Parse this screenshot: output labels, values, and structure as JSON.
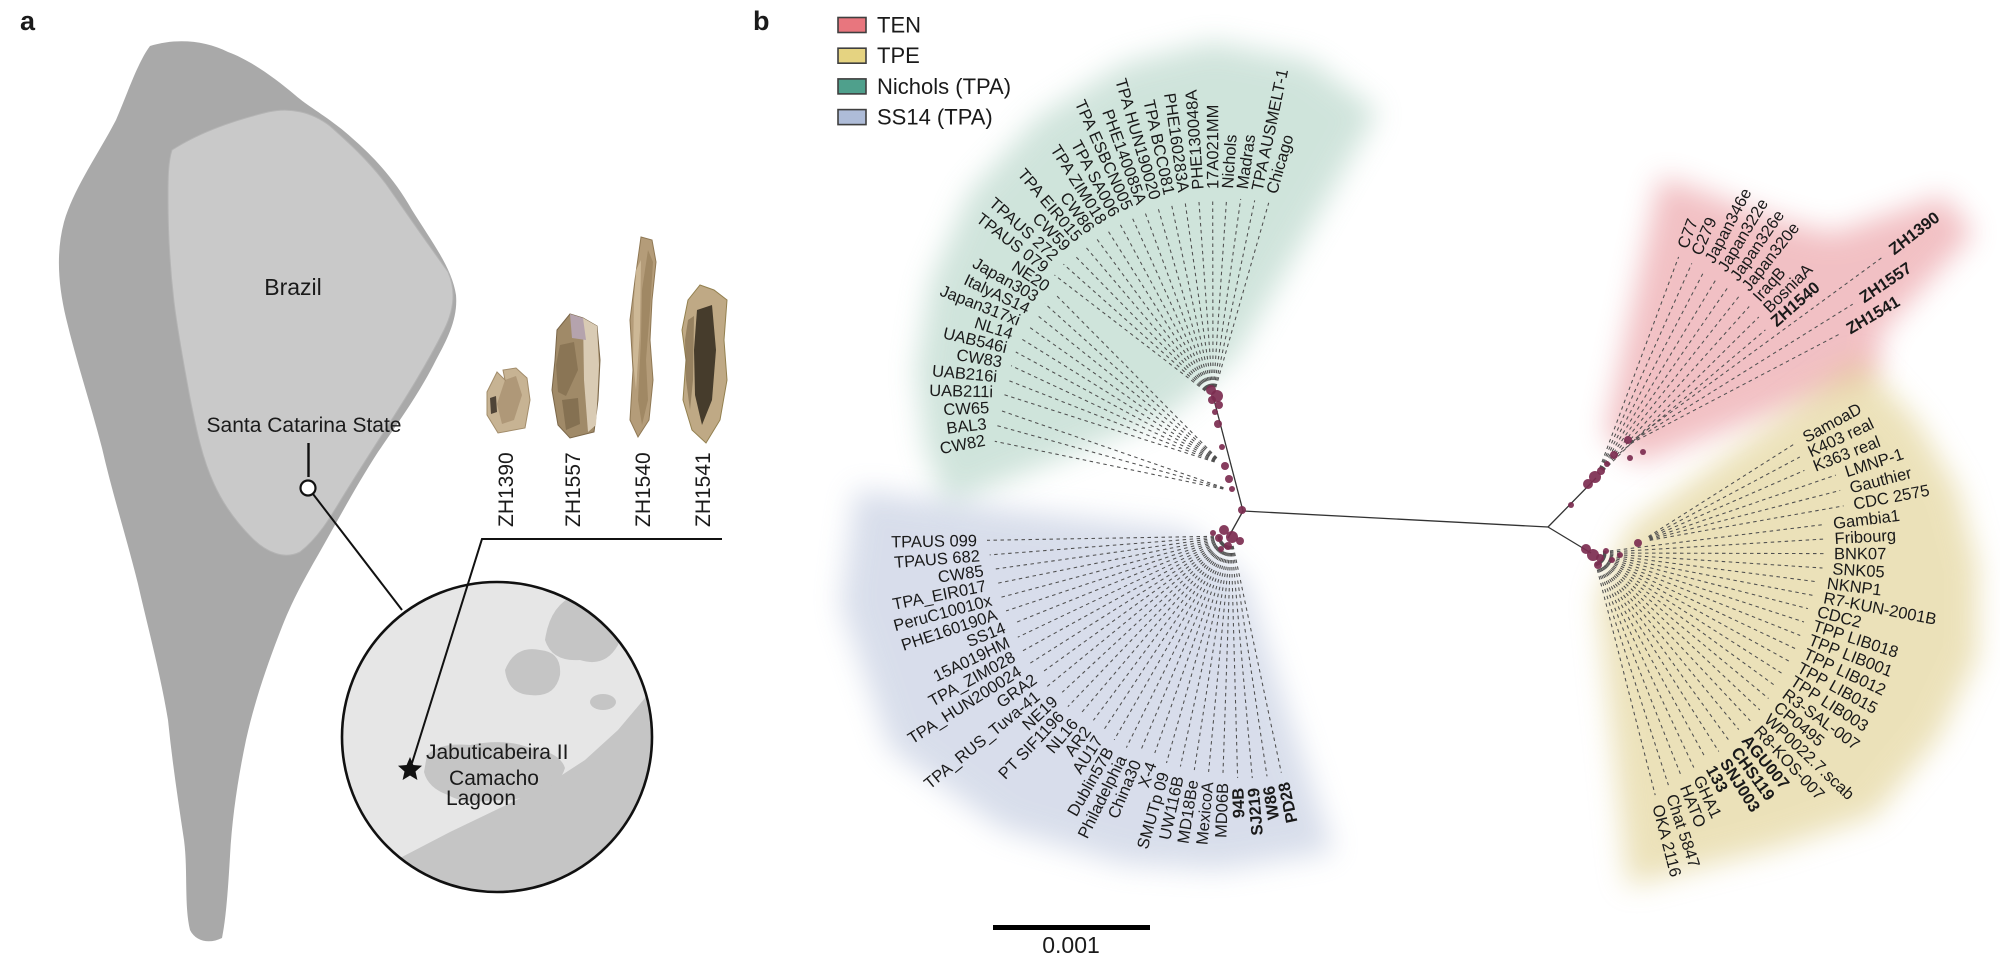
{
  "figure": {
    "panel_a_letter": "a",
    "panel_b_letter": "b"
  },
  "panel_a": {
    "map": {
      "country_label": "Brazil",
      "state_label": "Santa Catarina State"
    },
    "inset": {
      "site_label": "Jabuticabeira II",
      "lagoon_label_line1": "Camacho",
      "lagoon_label_line2": "Lagoon"
    },
    "samples": [
      {
        "id": "ZH1390"
      },
      {
        "id": "ZH1557"
      },
      {
        "id": "ZH1540"
      },
      {
        "id": "ZH1541"
      }
    ]
  },
  "panel_b": {
    "legend": {
      "items": [
        {
          "label": "TEN",
          "color": "#e8767e"
        },
        {
          "label": "TPE",
          "color": "#e5d381"
        },
        {
          "label": "Nichols (TPA)",
          "color": "#4fa08c"
        },
        {
          "label": "SS14 (TPA)",
          "color": "#aebcd8"
        }
      ]
    },
    "scale_bar": {
      "label": "0.001"
    },
    "chart_data": {
      "type": "phylogenetic_tree",
      "layout": "unrooted-radial",
      "scale_bar_value": "0.001",
      "node_color": "#7c2d50",
      "stem_color": "#333333",
      "branch_color": "#4f4f4f",
      "stems": [
        [
          [
            1213,
            396
          ],
          [
            1243,
            511
          ]
        ],
        [
          [
            1243,
            511
          ],
          [
            1228,
            538
          ]
        ],
        [
          [
            1243,
            511
          ],
          [
            1548,
            527
          ]
        ],
        [
          [
            1548,
            527
          ],
          [
            1596,
            478
          ]
        ],
        [
          [
            1548,
            527
          ],
          [
            1591,
            553
          ]
        ]
      ],
      "clades": [
        {
          "name": "Nichols (TPA)",
          "blob_color": "#8fbfab",
          "blob_opacity": 0.42,
          "vertex": [
            1213,
            397
          ],
          "origins": [
            [
              1213,
              397
            ],
            [
              1224,
              465
            ],
            [
              1233,
              491
            ]
          ],
          "angle_start": 190.7,
          "angle_end": 74,
          "flip_above": 95,
          "blob": [
            [
              60,
              330
            ],
            [
              74,
              350
            ],
            [
              90,
              355
            ],
            [
              105,
              345
            ],
            [
              122,
              330
            ],
            [
              140,
              318
            ],
            [
              158,
              305
            ],
            [
              175,
              298
            ],
            [
              190,
              292
            ],
            [
              202,
              288
            ]
          ],
          "nodes": [
            [
              1211,
              390,
              5
            ],
            [
              1217,
              396,
              6
            ],
            [
              1212,
              400,
              4
            ],
            [
              1219,
              405,
              4
            ],
            [
              1215,
              412,
              3
            ],
            [
              1218,
              424,
              4
            ],
            [
              1222,
              447,
              3
            ],
            [
              1225,
              466,
              4
            ],
            [
              1229,
              479,
              4
            ],
            [
              1232,
              489,
              3
            ],
            [
              1242,
              510,
              4
            ]
          ],
          "taxa": [
            {
              "label": "CW82",
              "r": 230,
              "o": 2
            },
            {
              "label": "BAL3",
              "r": 226,
              "o": 2
            },
            {
              "label": "CW65",
              "r": 222,
              "o": 2
            },
            {
              "label": "UAB211i",
              "r": 218,
              "o": 1
            },
            {
              "label": "UAB216i",
              "r": 215,
              "o": 1
            },
            {
              "label": "CW83",
              "r": 212,
              "o": 1
            },
            {
              "label": "UAB546i",
              "r": 210,
              "o": 1
            },
            {
              "label": "NL14",
              "r": 208,
              "o": 1
            },
            {
              "label": "Japan317xi",
              "r": 206,
              "o": 1
            },
            {
              "label": "ItalyAS14",
              "r": 202,
              "o": 1
            },
            {
              "label": "Japan303",
              "r": 200,
              "o": 1
            },
            {
              "label": "NE20",
              "r": 196,
              "o": 1
            },
            {
              "label": "TPAUS 079",
              "r": 208
            },
            {
              "label": "TPAUS 272",
              "r": 208
            },
            {
              "label": "CW59",
              "r": 206
            },
            {
              "label": "TPA EIR015",
              "r": 205
            },
            {
              "label": "CW86",
              "r": 204
            },
            {
              "label": "TPA ZIM018",
              "r": 204
            },
            {
              "label": "TPA SA006",
              "r": 204
            },
            {
              "label": "TPA ESBCN005",
              "r": 204
            },
            {
              "label": "PHE140085A",
              "r": 204
            },
            {
              "label": "TPA HUN190020",
              "r": 204
            },
            {
              "label": "TPA BCC081",
              "r": 205
            },
            {
              "label": "PHE160283A",
              "r": 205
            },
            {
              "label": "PHE130048A",
              "r": 206
            },
            {
              "label": "17A021MM",
              "r": 206
            },
            {
              "label": "Nichols",
              "r": 207
            },
            {
              "label": "Madras",
              "r": 208
            },
            {
              "label": "TPA AUSMELT-1",
              "r": 209
            },
            {
              "label": "Chicago",
              "r": 210
            }
          ]
        },
        {
          "name": "TEN",
          "blob_color": "#e2757d",
          "blob_opacity": 0.45,
          "vertex": [
            1596,
            478
          ],
          "origins": [
            [
              1596,
              478
            ],
            [
              1607,
              464
            ],
            [
              1622,
              448
            ]
          ],
          "angle_start": 69.5,
          "angle_end": 30.5,
          "flip_above": 999,
          "blob": [
            [
              20,
              300
            ],
            [
              27,
              320
            ],
            [
              33,
              450
            ],
            [
              39,
              448
            ],
            [
              46,
              340
            ],
            [
              54,
              318
            ],
            [
              62,
              308
            ],
            [
              70,
              306
            ],
            [
              78,
              308
            ]
          ],
          "nodes": [
            [
              1588,
              484,
              5
            ],
            [
              1595,
              477,
              6
            ],
            [
              1601,
              471,
              4
            ],
            [
              1607,
              464,
              3
            ],
            [
              1614,
              455,
              4
            ],
            [
              1628,
              440,
              4
            ],
            [
              1630,
              458,
              3
            ],
            [
              1643,
              452,
              3
            ],
            [
              1571,
              505,
              3
            ]
          ],
          "taxa": [
            {
              "label": "C77",
              "r": 244
            },
            {
              "label": "C279",
              "r": 243
            },
            {
              "label": "Japan346e",
              "r": 242
            },
            {
              "label": "Japan322e",
              "r": 241
            },
            {
              "label": "Japan326e",
              "r": 240
            },
            {
              "label": "Japan320e",
              "r": 239
            },
            {
              "label": "IraqB",
              "r": 238
            },
            {
              "label": "BosniaA",
              "r": 237
            },
            {
              "label": "ZH1540",
              "bold": true,
              "r": 233,
              "o": 1
            },
            {
              "label": "ZH1390",
              "bold": true,
              "r": 370,
              "o": 2
            },
            {
              "label": "ZH1557",
              "bold": true,
              "r": 318,
              "o": 2
            },
            {
              "label": "ZH1541",
              "bold": true,
              "r": 290,
              "o": 2
            }
          ]
        },
        {
          "name": "TPE",
          "blob_color": "#d9c576",
          "blob_opacity": 0.5,
          "vertex": [
            1593,
            553
          ],
          "origins": [
            [
              1593,
              553
            ],
            [
              1640,
              542
            ]
          ],
          "angle_start": 28.6,
          "angle_end": -75.6,
          "flip_above": 999,
          "blob": [
            [
              -84,
              335
            ],
            [
              -72,
              332
            ],
            [
              -58,
              348
            ],
            [
              -43,
              385
            ],
            [
              -28,
              392
            ],
            [
              -15,
              398
            ],
            [
              -2,
              385
            ],
            [
              10,
              370
            ],
            [
              22,
              350
            ],
            [
              36,
              330
            ]
          ],
          "nodes": [
            [
              1586,
              549,
              5
            ],
            [
              1593,
              555,
              6
            ],
            [
              1600,
              558,
              4
            ],
            [
              1606,
              551,
              3
            ],
            [
              1612,
              560,
              3
            ],
            [
              1638,
              543,
              4
            ],
            [
              1598,
              565,
              4
            ],
            [
              1620,
              555,
              3
            ]
          ],
          "taxa": [
            {
              "label": "SamoaD",
              "r": 238,
              "o": 1
            },
            {
              "label": "K403 real",
              "r": 236,
              "o": 1
            },
            {
              "label": "K363 real",
              "r": 235,
              "o": 1
            },
            {
              "label": "LMNP-1",
              "r": 263,
              "o": 1
            },
            {
              "label": "Gauthier",
              "r": 263,
              "o": 1
            },
            {
              "label": "CDC 2575",
              "r": 263,
              "o": 1
            },
            {
              "label": "Gambia1",
              "r": 240
            },
            {
              "label": "Fribourg",
              "r": 240
            },
            {
              "label": "BNK07",
              "r": 239
            },
            {
              "label": "SNK05",
              "r": 238
            },
            {
              "label": "NKNP1",
              "r": 234
            },
            {
              "label": "R7-KUN-2001B",
              "r": 233
            },
            {
              "label": "CDC2",
              "r": 230
            },
            {
              "label": "TPP LIB018",
              "r": 230
            },
            {
              "label": "TPP LIB001",
              "r": 231
            },
            {
              "label": "TPP LIB012",
              "r": 232
            },
            {
              "label": "TPP LIB015",
              "r": 233
            },
            {
              "label": "TPP LIB003",
              "r": 234
            },
            {
              "label": "R3-SAL-007",
              "r": 235
            },
            {
              "label": "CP0495",
              "r": 236
            },
            {
              "label": "WP0022.7.scab",
              "r": 237
            },
            {
              "label": "R8-KOS-007",
              "r": 238
            },
            {
              "label": "AGU007",
              "bold": true,
              "r": 237
            },
            {
              "label": "CHS119",
              "bold": true,
              "r": 240
            },
            {
              "label": "SNJ003",
              "bold": true,
              "r": 243
            },
            {
              "label": "133",
              "bold": true,
              "r": 242
            },
            {
              "label": "GHA1",
              "r": 245
            },
            {
              "label": "HATO",
              "r": 248
            },
            {
              "label": "Chat 5847",
              "r": 252
            },
            {
              "label": "OKA 2116",
              "r": 258
            }
          ]
        },
        {
          "name": "SS14 (TPA)",
          "blob_color": "#a9b6d3",
          "blob_opacity": 0.45,
          "vertex": [
            1231,
            536
          ],
          "origins": [
            [
              1231,
              536
            ]
          ],
          "angle_start": 181,
          "angle_end": 282,
          "flip_above": 90,
          "blob": [
            [
              173,
              378
            ],
            [
              190,
              396
            ],
            [
              212,
              402
            ],
            [
              232,
              372
            ],
            [
              252,
              345
            ],
            [
              268,
              334
            ],
            [
              288,
              332
            ]
          ],
          "nodes": [
            [
              1224,
              530,
              5
            ],
            [
              1232,
              537,
              6
            ],
            [
              1240,
              541,
              4
            ],
            [
              1219,
              538,
              4
            ],
            [
              1228,
              546,
              4
            ],
            [
              1213,
              533,
              3
            ],
            [
              1221,
              549,
              3
            ]
          ],
          "taxa": [
            {
              "label": "TPAUS 099",
              "r": 252
            },
            {
              "label": "TPAUS 682",
              "r": 250
            },
            {
              "label": "CW85",
              "r": 248
            },
            {
              "label": "TPA_EIR017",
              "r": 248
            },
            {
              "label": "PeruC10010x",
              "r": 246
            },
            {
              "label": "PHE160190A",
              "r": 245
            },
            {
              "label": "SS14",
              "r": 242
            },
            {
              "label": "15A019HM",
              "r": 244
            },
            {
              "label": "TPA_ZIM028",
              "r": 246
            },
            {
              "label": "TPA_HUN200024",
              "r": 248
            },
            {
              "label": "GRA2",
              "r": 240
            },
            {
              "label": "TPA_RUS_Tuva-41",
              "r": 248
            },
            {
              "label": "NE19",
              "r": 238
            },
            {
              "label": "PT SIF1196",
              "r": 244
            },
            {
              "label": "NL16",
              "r": 240
            },
            {
              "label": "AR2",
              "r": 238
            },
            {
              "label": "AU17",
              "r": 239
            },
            {
              "label": "Dublin57B",
              "r": 243
            },
            {
              "label": "Philadelphia",
              "r": 244
            },
            {
              "label": "China30",
              "r": 242
            },
            {
              "label": "X-4",
              "r": 238
            },
            {
              "label": "SMUTp 09",
              "r": 244
            },
            {
              "label": "UW116B",
              "r": 244
            },
            {
              "label": "MD18Be",
              "r": 245
            },
            {
              "label": "MexicoA",
              "r": 245
            },
            {
              "label": "MD06B",
              "r": 245
            },
            {
              "label": "94B",
              "bold": true,
              "r": 250
            },
            {
              "label": "SJ219",
              "bold": true,
              "r": 251
            },
            {
              "label": "W86",
              "bold": true,
              "r": 251
            },
            {
              "label": "PD28",
              "bold": true,
              "r": 250
            }
          ]
        }
      ]
    }
  }
}
